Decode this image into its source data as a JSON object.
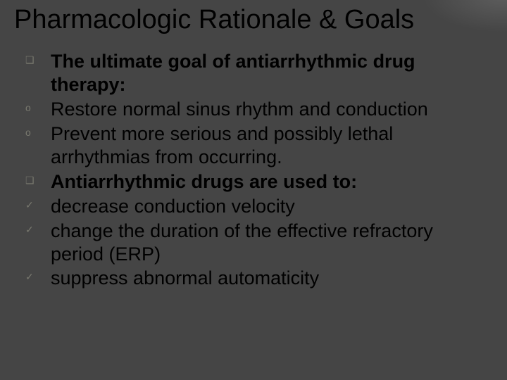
{
  "background_color": "#454545",
  "title_color": "#000000",
  "text_color": "#000000",
  "bullet_color": "#78786e",
  "title_fontsize_pt": 29,
  "body_fontsize_pt": 20,
  "bullet_fontsize_pt": 11,
  "title": "Pharmacologic Rationale & Goals",
  "items": [
    {
      "bullet": "❑",
      "bold": true,
      "text": "The ultimate goal of antiarrhythmic drug therapy:"
    },
    {
      "bullet": "o",
      "bold": false,
      "text": "Restore normal sinus rhythm and conduction"
    },
    {
      "bullet": "o",
      "bold": false,
      "text": "Prevent more serious and possibly lethal arrhythmias from occurring."
    },
    {
      "bullet": "❑",
      "bold": true,
      "text": " Antiarrhythmic drugs are used to:"
    },
    {
      "bullet": "✓",
      "bold": false,
      "text": "decrease conduction velocity"
    },
    {
      "bullet": "✓",
      "bold": false,
      "text": "change the duration of the effective refractory period (ERP)"
    },
    {
      "bullet": "✓",
      "bold": false,
      "text": "suppress abnormal automaticity"
    }
  ]
}
